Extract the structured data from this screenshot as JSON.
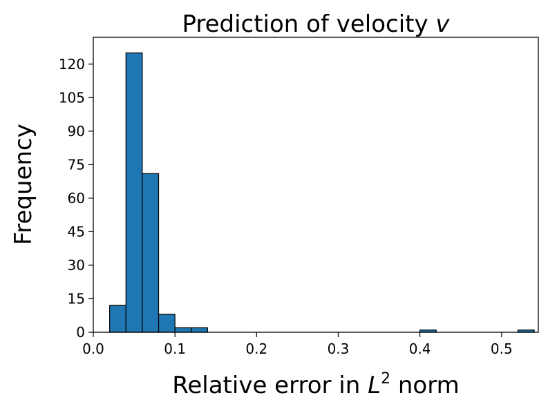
{
  "chart_data": {
    "type": "bar",
    "subtype": "histogram",
    "title_parts": [
      "Prediction of velocity ",
      "v"
    ],
    "xlabel_parts": [
      "Relative error in ",
      "L",
      "2",
      " norm"
    ],
    "ylabel": "Frequency",
    "xlim": [
      0.0,
      0.545
    ],
    "ylim": [
      0,
      132
    ],
    "xticks": [
      0.0,
      0.1,
      0.2,
      0.3,
      0.4,
      0.5
    ],
    "xtick_labels": [
      "0.0",
      "0.1",
      "0.2",
      "0.3",
      "0.4",
      "0.5"
    ],
    "yticks": [
      0,
      15,
      30,
      45,
      60,
      75,
      90,
      105,
      120
    ],
    "ytick_labels": [
      "0",
      "15",
      "30",
      "45",
      "60",
      "75",
      "90",
      "105",
      "120"
    ],
    "bin_edges": [
      0.02,
      0.04,
      0.06,
      0.08,
      0.1,
      0.12,
      0.14,
      0.16,
      0.18,
      0.2,
      0.22,
      0.24,
      0.26,
      0.28,
      0.3,
      0.32,
      0.34,
      0.36,
      0.38,
      0.4,
      0.42,
      0.44,
      0.46,
      0.48,
      0.5,
      0.52,
      0.54
    ],
    "counts": [
      12,
      125,
      71,
      8,
      2,
      2,
      0,
      0,
      0,
      0,
      0,
      0,
      0,
      0,
      0,
      0,
      0,
      0,
      0,
      1,
      0,
      0,
      0,
      0,
      0,
      1
    ],
    "bar_color": "#1f77b4",
    "edge_color": "#000000",
    "grid": false,
    "legend": "none"
  }
}
